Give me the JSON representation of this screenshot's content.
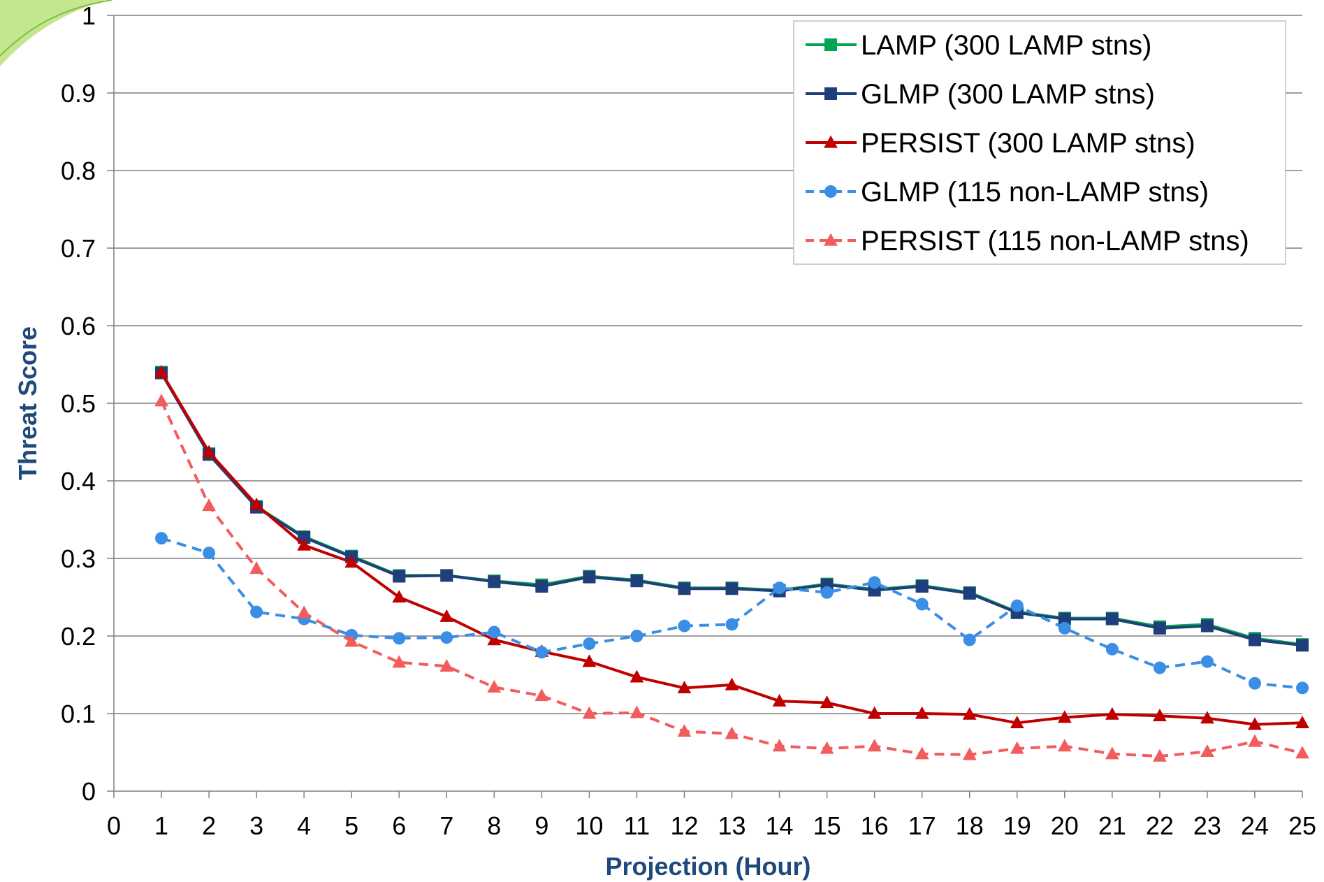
{
  "chart_data": {
    "type": "line",
    "xlabel": "Projection (Hour)",
    "ylabel": "Threat Score",
    "xlim": [
      0,
      25
    ],
    "ylim": [
      0,
      1
    ],
    "x_ticks": [
      "0",
      "1",
      "2",
      "3",
      "4",
      "5",
      "6",
      "7",
      "8",
      "9",
      "10",
      "11",
      "12",
      "13",
      "14",
      "15",
      "16",
      "17",
      "18",
      "19",
      "20",
      "21",
      "22",
      "23",
      "24",
      "25"
    ],
    "y_ticks": [
      "0",
      "0.1",
      "0.2",
      "0.3",
      "0.4",
      "0.5",
      "0.6",
      "0.7",
      "0.8",
      "0.9",
      "1"
    ],
    "grid": "horizontal",
    "legend_position": "top-right",
    "x": [
      1,
      2,
      3,
      4,
      5,
      6,
      7,
      8,
      9,
      10,
      11,
      12,
      13,
      14,
      15,
      16,
      17,
      18,
      19,
      20,
      21,
      22,
      23,
      24,
      25
    ],
    "series": [
      {
        "name": "LAMP (300 LAMP stns)",
        "color": "#00a651",
        "marker": "square",
        "dash": false,
        "values": [
          0.54,
          0.435,
          0.367,
          0.328,
          0.303,
          0.278,
          0.278,
          0.271,
          0.266,
          0.277,
          0.272,
          0.262,
          0.262,
          0.259,
          0.267,
          0.26,
          0.265,
          0.256,
          0.231,
          0.223,
          0.223,
          0.212,
          0.215,
          0.197,
          0.189
        ]
      },
      {
        "name": "GLMP (300 LAMP stns)",
        "color": "#1f3f7a",
        "marker": "square",
        "dash": false,
        "values": [
          0.539,
          0.434,
          0.366,
          0.327,
          0.302,
          0.277,
          0.278,
          0.27,
          0.264,
          0.276,
          0.271,
          0.261,
          0.261,
          0.258,
          0.266,
          0.259,
          0.264,
          0.255,
          0.23,
          0.222,
          0.222,
          0.21,
          0.213,
          0.195,
          0.188
        ]
      },
      {
        "name": "PERSIST (300 LAMP stns)",
        "color": "#c00000",
        "marker": "triangle",
        "dash": false,
        "values": [
          0.54,
          0.437,
          0.369,
          0.317,
          0.295,
          0.25,
          0.225,
          0.195,
          0.18,
          0.167,
          0.147,
          0.133,
          0.137,
          0.116,
          0.114,
          0.1,
          0.1,
          0.099,
          0.088,
          0.095,
          0.099,
          0.097,
          0.094,
          0.086,
          0.088
        ]
      },
      {
        "name": "GLMP (115 non-LAMP stns)",
        "color": "#3a8ee6",
        "marker": "circle",
        "dash": true,
        "values": [
          0.326,
          0.307,
          0.231,
          0.222,
          0.201,
          0.197,
          0.198,
          0.205,
          0.179,
          0.19,
          0.2,
          0.213,
          0.215,
          0.262,
          0.256,
          0.269,
          0.241,
          0.195,
          0.239,
          0.21,
          0.183,
          0.159,
          0.167,
          0.139,
          0.133
        ]
      },
      {
        "name": "PERSIST (115 non-LAMP stns)",
        "color": "#f25c5c",
        "marker": "triangle",
        "dash": true,
        "values": [
          0.503,
          0.368,
          0.287,
          0.23,
          0.193,
          0.166,
          0.161,
          0.134,
          0.123,
          0.1,
          0.101,
          0.077,
          0.074,
          0.058,
          0.055,
          0.058,
          0.048,
          0.047,
          0.055,
          0.058,
          0.048,
          0.045,
          0.051,
          0.064,
          0.049
        ]
      }
    ]
  }
}
